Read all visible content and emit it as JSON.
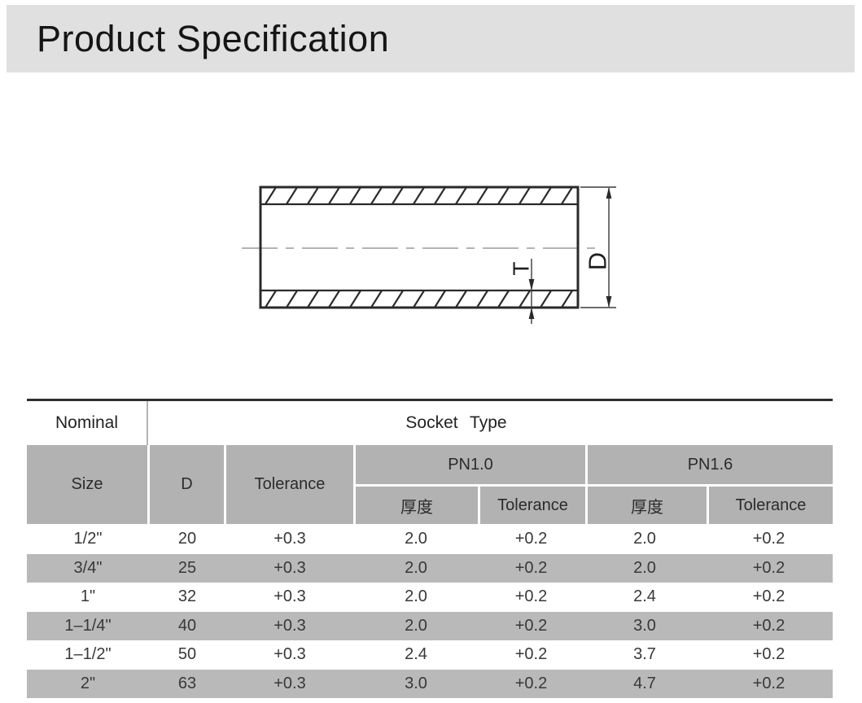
{
  "page": {
    "title": "Product Specification"
  },
  "drawing": {
    "thickness_label": "T",
    "diameter_label": "D"
  },
  "table": {
    "header": {
      "nominal": "Nominal",
      "socket_type": "Socket Type",
      "size": "Size",
      "d": "D",
      "tolerance": "Tolerance",
      "pn10": "PN1.0",
      "pn16": "PN1.6",
      "pn10_thickness": "厚度",
      "pn10_tolerance": "Tolerance",
      "pn16_thickness": "厚度",
      "pn16_tolerance": "Tolerance"
    },
    "columns": [
      "Size",
      "D",
      "Tolerance",
      "PN1.0 厚度",
      "PN1.0 Tolerance",
      "PN1.6 厚度",
      "PN1.6 Tolerance"
    ],
    "rows": [
      [
        "1/2\"",
        "20",
        "+0.3",
        "2.0",
        "+0.2",
        "2.0",
        "+0.2"
      ],
      [
        "3/4\"",
        "25",
        "+0.3",
        "2.0",
        "+0.2",
        "2.0",
        "+0.2"
      ],
      [
        "1\"",
        "32",
        "+0.3",
        "2.0",
        "+0.2",
        "2.4",
        "+0.2"
      ],
      [
        "1–1/4\"",
        "40",
        "+0.3",
        "2.0",
        "+0.2",
        "3.0",
        "+0.2"
      ],
      [
        "1–1/2\"",
        "50",
        "+0.3",
        "2.4",
        "+0.2",
        "3.7",
        "+0.2"
      ],
      [
        "2\"",
        "63",
        "+0.3",
        "3.0",
        "+0.2",
        "4.7",
        "+0.2"
      ]
    ]
  },
  "colors": {
    "title_band_bg": "#e0e0e0",
    "table_header_bg": "#b2b2b2",
    "row_alt_bg": "#b9b9b9",
    "top_border": "#2e2e2e",
    "text": "#333333"
  }
}
